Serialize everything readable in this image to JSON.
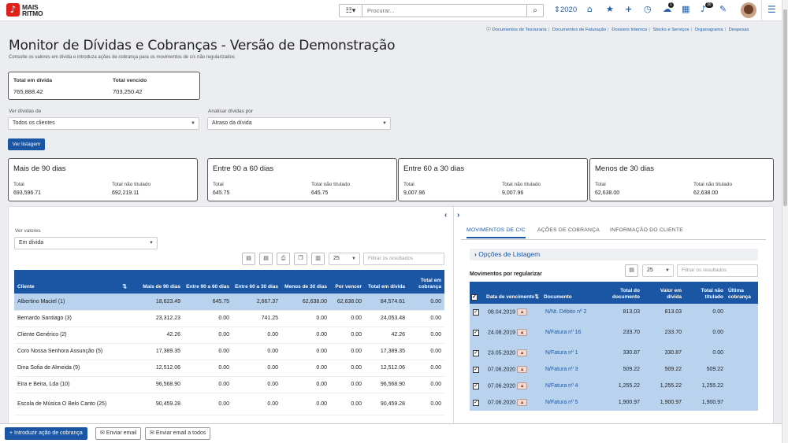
{
  "app": {
    "logo_line1": "MAIS",
    "logo_line2": "RITMO",
    "logo_glyph": "♪"
  },
  "topbar": {
    "search_placeholder": "Procurar...",
    "year": "2020",
    "notif1": "1",
    "notif2": "30"
  },
  "links": [
    "Documentos de Tesouraria",
    "Documentos de Faturação",
    "Dossiers Internos",
    "Stocks e Serviços",
    "Organograma",
    "Despesas"
  ],
  "page": {
    "title": "Monitor de Dívidas e Cobranças - Versão de Demonstração",
    "subtitle": "Consulte os valores em dívida e introduza ações de cobrança para os movimentos de c/c não regularizados"
  },
  "totals": {
    "divida_label": "Total em dívida",
    "divida_value": "765,888.42",
    "vencido_label": "Total vencido",
    "vencido_value": "703,250.42"
  },
  "filters": {
    "ver_label": "Ver dívidas de",
    "ver_value": "Todos os clientes",
    "analisar_label": "Analisar dívidas por",
    "analisar_value": "Atraso da dívida",
    "ver_button": "Ver listagem"
  },
  "cards": [
    {
      "title": "Mais de 90 dias",
      "l1": "Total",
      "v1": "693,596.71",
      "l2": "Total não titulado",
      "v2": "692,219.11"
    },
    {
      "title": "Entre 90 a 60 dias",
      "l1": "Total",
      "v1": "645.75",
      "l2": "Total não titulado",
      "v2": "645.75"
    },
    {
      "title": "Entre 60 a 30 dias",
      "l1": "Total",
      "v1": "9,007.96",
      "l2": "Total não titulado",
      "v2": "9,007.96"
    },
    {
      "title": "Menos de 30 dias",
      "l1": "Total",
      "v1": "62,638.00",
      "l2": "Total não titulado",
      "v2": "62,638.00"
    }
  ],
  "left": {
    "valores_label": "Ver valores",
    "valores_value": "Em dívida",
    "page_size": "25",
    "filter_placeholder": "Filtrar os resultados",
    "headers": [
      "Cliente",
      "Mais de 90 dias",
      "Entre 90 a 60 dias",
      "Entre 60 a 30 dias",
      "Menos de 30 dias",
      "Por vencer",
      "Total em dívida",
      "Total em cobrança"
    ],
    "rows": [
      [
        "Albertino Maciel (1)",
        "18,623.49",
        "645.75",
        "2,667.37",
        "62,638.00",
        "62,638.00",
        "84,574.61",
        "0.00"
      ],
      [
        "Bernardo Santiago (3)",
        "23,312.23",
        "0.00",
        "741.25",
        "0.00",
        "0.00",
        "24,053.48",
        "0.00"
      ],
      [
        "Cliente Genérico (2)",
        "42.26",
        "0.00",
        "0.00",
        "0.00",
        "0.00",
        "42.26",
        "0.00"
      ],
      [
        "Coro Nossa Senhora Assunção (5)",
        "17,389.35",
        "0.00",
        "0.00",
        "0.00",
        "0.00",
        "17,389.35",
        "0.00"
      ],
      [
        "Dina Sofia de Almeida (9)",
        "12,512.06",
        "0.00",
        "0.00",
        "0.00",
        "0.00",
        "12,512.06",
        "0.00"
      ],
      [
        "Eira e Beira, Lda (10)",
        "96,568.90",
        "0.00",
        "0.00",
        "0.00",
        "0.00",
        "96,568.90",
        "0.00"
      ],
      [
        "Escola de Música O Belo Canto (25)",
        "90,459.28",
        "0.00",
        "0.00",
        "0.00",
        "0.00",
        "90,459.28",
        "0.00"
      ]
    ]
  },
  "right": {
    "tabs": [
      "MOVIMENTOS DE C/C",
      "AÇÕES DE COBRANÇA",
      "INFORMAÇÃO DO CLIENTE"
    ],
    "options": "Opções de Listagem",
    "section": "Movimentos por regularizar",
    "page_size": "25",
    "filter_placeholder": "Filtrar os resultados",
    "headers": [
      "Data de vencimento",
      "Documento",
      "Total do documento",
      "Valor em dívida",
      "Total não titulado",
      "Última cobrança"
    ],
    "rows": [
      [
        "08.04.2019",
        "N/Nt. Débito nº 2",
        "813.03",
        "813.03",
        "0.00",
        ""
      ],
      [
        "24.08.2019",
        "N/Fatura nº 16",
        "233.70",
        "233.70",
        "0.00",
        ""
      ],
      [
        "23.05.2020",
        "N/Fatura nº 1",
        "330.87",
        "330.87",
        "0.00",
        ""
      ],
      [
        "07.06.2020",
        "N/Fatura nº 3",
        "509.22",
        "509.22",
        "509.22",
        ""
      ],
      [
        "07.06.2020",
        "N/Fatura nº 4",
        "1,255.22",
        "1,255.22",
        "1,255.22",
        ""
      ],
      [
        "07.06.2020",
        "N/Fatura nº 5",
        "1,900.97",
        "1,900.97",
        "1,900.97",
        ""
      ]
    ]
  },
  "actions": {
    "introduzir": "Introduzir ação de cobrança",
    "enviar": "Enviar email",
    "enviar_todos": "Enviar email a todos"
  }
}
